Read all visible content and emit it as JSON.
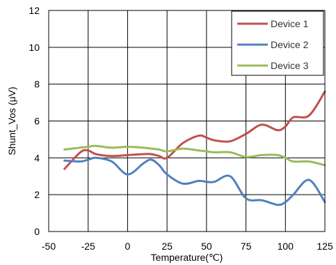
{
  "chart_data": {
    "type": "line",
    "title": "",
    "xlabel": "Temperature(℃)",
    "ylabel": "Shunt_Vos (μV)",
    "xlim": [
      -50,
      125
    ],
    "ylim": [
      0,
      12
    ],
    "x_ticks": [
      "-50",
      "-25",
      "0",
      "25",
      "50",
      "75",
      "100",
      "125"
    ],
    "y_ticks": [
      "0",
      "2",
      "4",
      "6",
      "8",
      "10",
      "12"
    ],
    "grid": true,
    "legend_position": "top-right",
    "series": [
      {
        "name": "Device 1",
        "color": "#c0504d",
        "x": [
          -40,
          -30,
          -25,
          -20,
          -10,
          0,
          10,
          15,
          20,
          25,
          35,
          45,
          50,
          55,
          65,
          75,
          85,
          95,
          100,
          105,
          115,
          125
        ],
        "y": [
          3.4,
          4.3,
          4.4,
          4.2,
          4.1,
          4.15,
          4.2,
          4.2,
          4.1,
          4.0,
          4.8,
          5.2,
          5.1,
          4.95,
          4.9,
          5.3,
          5.8,
          5.5,
          5.7,
          6.2,
          6.3,
          7.6
        ]
      },
      {
        "name": "Device 2",
        "color": "#4f81bd",
        "x": [
          -40,
          -30,
          -25,
          -20,
          -10,
          0,
          10,
          15,
          20,
          25,
          35,
          45,
          50,
          55,
          65,
          75,
          85,
          95,
          100,
          105,
          115,
          125
        ],
        "y": [
          3.85,
          3.8,
          3.9,
          4.0,
          3.8,
          3.1,
          3.7,
          3.9,
          3.6,
          3.1,
          2.6,
          2.75,
          2.7,
          2.7,
          3.0,
          1.8,
          1.7,
          1.45,
          1.6,
          2.0,
          2.8,
          1.6
        ]
      },
      {
        "name": "Device 3",
        "color": "#9bbb59",
        "x": [
          -40,
          -30,
          -25,
          -20,
          -10,
          0,
          10,
          15,
          20,
          25,
          35,
          45,
          50,
          55,
          65,
          75,
          85,
          95,
          100,
          105,
          115,
          125
        ],
        "y": [
          4.45,
          4.55,
          4.6,
          4.65,
          4.55,
          4.6,
          4.55,
          4.5,
          4.45,
          4.35,
          4.5,
          4.4,
          4.35,
          4.3,
          4.3,
          4.05,
          4.15,
          4.15,
          4.0,
          3.8,
          3.8,
          3.6
        ]
      }
    ]
  }
}
